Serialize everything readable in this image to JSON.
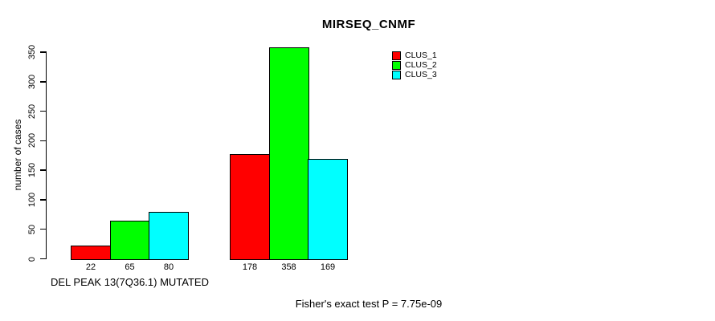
{
  "chart_data": {
    "type": "bar",
    "title": "MIRSEQ_CNMF",
    "ylabel": "number of cases",
    "xlabel": "",
    "ylim": [
      0,
      350
    ],
    "yticks": [
      0,
      50,
      100,
      150,
      200,
      250,
      300,
      350
    ],
    "grid": false,
    "legend_position": "top-right",
    "categories": [
      "DEL PEAK 13(7Q36.1) MUTATED",
      ""
    ],
    "series": [
      {
        "name": "CLUS_1",
        "color": "#FF0000",
        "values": [
          22,
          178
        ]
      },
      {
        "name": "CLUS_2",
        "color": "#00FF00",
        "values": [
          65,
          358
        ]
      },
      {
        "name": "CLUS_3",
        "color": "#00FFFF",
        "values": [
          80,
          169
        ]
      }
    ],
    "bar_value_labels": [
      [
        "22",
        "65",
        "80"
      ],
      [
        "178",
        "358",
        "169"
      ]
    ],
    "annotation": "Fisher's exact test P = 7.75e-09"
  },
  "colors": {
    "background": "#FFFFFF",
    "axis": "#000000",
    "text": "#000000",
    "clus_1": "#FF0000",
    "clus_2": "#00FF00",
    "clus_3": "#00FFFF"
  }
}
